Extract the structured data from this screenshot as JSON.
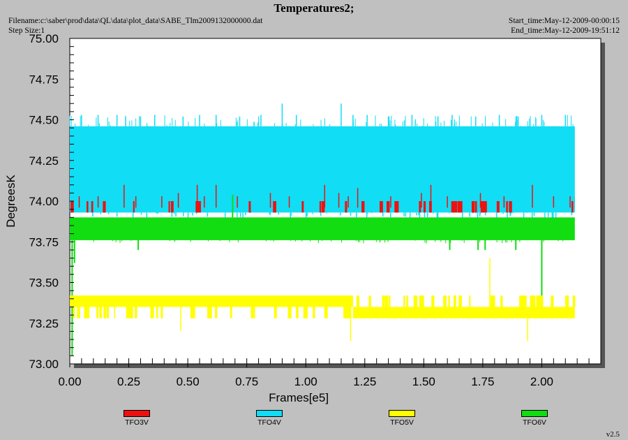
{
  "chart_data": {
    "type": "line",
    "title": "Temperatures2;",
    "filename": "Filename:c:\\saber\\prod\\data\\QL\\data\\plot_data\\SABE_Tlm2009132000000.dat",
    "step_size": "Step Size:1",
    "start_time": "Start_time:May-12-2009-00:00:15",
    "end_time": "End_time:May-12-2009-19:51:12",
    "xlabel": "Frames[e5]",
    "ylabel": "DegreesK",
    "xlim": [
      0,
      2.25
    ],
    "ylim": [
      73.0,
      75.0
    ],
    "x_ticks": [
      "0.00",
      "0.25",
      "0.50",
      "0.75",
      "1.00",
      "1.25",
      "1.50",
      "1.75",
      "2.00"
    ],
    "y_ticks": [
      "73.00",
      "73.25",
      "73.50",
      "73.75",
      "74.00",
      "74.25",
      "74.50",
      "74.75",
      "75.00"
    ],
    "grid": false,
    "legend_position": "bottom",
    "x_range_data": [
      0.0,
      2.14
    ],
    "series": [
      {
        "name": "TFO3V",
        "color": "#ee1111",
        "baseline_band": [
          73.95,
          74.03
        ],
        "spikes": [
          [
            0.04,
            74.03
          ],
          [
            0.12,
            74.03
          ],
          [
            0.23,
            74.1
          ],
          [
            0.28,
            74.03
          ],
          [
            0.39,
            74.03
          ],
          [
            0.46,
            74.05
          ],
          [
            0.54,
            74.1
          ],
          [
            0.57,
            74.03
          ],
          [
            0.62,
            74.1
          ],
          [
            0.71,
            74.03
          ],
          [
            0.85,
            74.05
          ],
          [
            0.93,
            74.03
          ],
          [
            1.08,
            74.1
          ],
          [
            1.14,
            74.05
          ],
          [
            1.18,
            74.03
          ],
          [
            1.22,
            74.08
          ],
          [
            1.36,
            74.03
          ],
          [
            1.49,
            74.05
          ],
          [
            1.53,
            74.1
          ],
          [
            1.6,
            74.03
          ],
          [
            1.74,
            74.05
          ],
          [
            1.84,
            74.03
          ],
          [
            1.96,
            74.1
          ],
          [
            2.05,
            74.03
          ],
          [
            2.12,
            74.03
          ]
        ]
      },
      {
        "name": "TFO4V",
        "color": "#11ddf5",
        "band": [
          73.93,
          74.46
        ],
        "spikes": [
          [
            0.05,
            74.53
          ],
          [
            0.12,
            74.53
          ],
          [
            0.2,
            74.53
          ],
          [
            0.3,
            74.52
          ],
          [
            0.36,
            74.53
          ],
          [
            0.48,
            74.52
          ],
          [
            0.55,
            74.53
          ],
          [
            0.62,
            74.53
          ],
          [
            0.72,
            74.52
          ],
          [
            0.81,
            74.53
          ],
          [
            0.9,
            74.6
          ],
          [
            0.96,
            74.53
          ],
          [
            1.15,
            74.6
          ],
          [
            1.2,
            74.53
          ],
          [
            1.26,
            74.53
          ],
          [
            1.35,
            74.52
          ],
          [
            1.45,
            74.53
          ],
          [
            1.56,
            74.52
          ],
          [
            1.62,
            74.53
          ],
          [
            1.72,
            74.52
          ],
          [
            1.82,
            74.53
          ],
          [
            1.9,
            74.52
          ],
          [
            2.0,
            74.53
          ],
          [
            2.1,
            74.53
          ]
        ]
      },
      {
        "name": "TFO5V",
        "color": "#ffff00",
        "band_first": [
          73.35,
          73.42
        ],
        "band_second": [
          73.28,
          73.35
        ],
        "step_x": 1.2,
        "spikes": [
          [
            0.19,
            73.28
          ],
          [
            0.47,
            73.2
          ],
          [
            1.19,
            73.14
          ],
          [
            1.78,
            73.65
          ],
          [
            1.94,
            73.14
          ],
          [
            2.12,
            73.3
          ]
        ]
      },
      {
        "name": "TFO6V",
        "color": "#11dd11",
        "band": [
          73.76,
          73.9
        ],
        "spikes": [
          [
            0.01,
            73.05
          ],
          [
            0.02,
            73.62
          ],
          [
            0.29,
            73.7
          ],
          [
            0.69,
            74.04
          ],
          [
            1.61,
            73.7
          ],
          [
            1.73,
            73.7
          ],
          [
            1.76,
            73.7
          ],
          [
            1.89,
            73.7
          ],
          [
            2.0,
            73.28
          ]
        ]
      }
    ]
  },
  "footer": {
    "version": "v2.5"
  }
}
